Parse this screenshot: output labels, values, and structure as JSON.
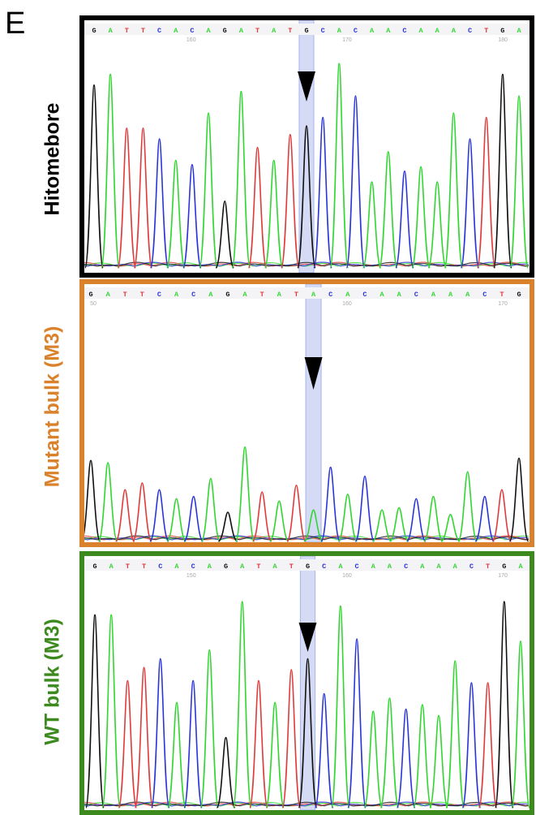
{
  "panel_letter": "E",
  "colors": {
    "A": "#2fd62f",
    "T": "#e03a3a",
    "C": "#2a35d8",
    "G": "#111111",
    "highlight": "#7c8fe0"
  },
  "panels": [
    {
      "id": "hitomebore",
      "label": "Hitomebore",
      "label_color": "#000000",
      "border_color": "#000000",
      "sequence": "GATTCACAGATATGCACAACAAACTGA",
      "positions": [
        "160",
        "170",
        "180"
      ],
      "highlight_base": "G",
      "peaks": [
        0.85,
        0.9,
        0.65,
        0.65,
        0.6,
        0.5,
        0.48,
        0.72,
        0.31,
        0.82,
        0.56,
        0.5,
        0.62,
        0.66,
        0.7,
        0.95,
        0.8,
        0.4,
        0.54,
        0.45,
        0.47,
        0.4,
        0.72,
        0.6,
        0.7,
        0.9,
        0.8
      ]
    },
    {
      "id": "mutant-bulk",
      "label": "Mutant bulk (M3)",
      "label_color": "#d9822b",
      "border_color": "#d9822b",
      "sequence": "GATTCACAGATATACACAACAAACTG",
      "positions": [
        "50",
        "160",
        "170"
      ],
      "highlight_base": "A",
      "peaks": [
        0.36,
        0.35,
        0.23,
        0.26,
        0.23,
        0.19,
        0.2,
        0.28,
        0.13,
        0.42,
        0.22,
        0.18,
        0.25,
        0.14,
        0.33,
        0.21,
        0.29,
        0.14,
        0.15,
        0.19,
        0.2,
        0.12,
        0.31,
        0.2,
        0.23,
        0.37
      ]
    },
    {
      "id": "wt-bulk",
      "label": "WT bulk (M3)",
      "label_color": "#3c8a1e",
      "border_color": "#3c8a1e",
      "sequence": "GATTCACAGATATGCACAACAAACTGA",
      "positions": [
        "150",
        "160",
        "170"
      ],
      "highlight_base": "G",
      "peaks": [
        0.88,
        0.88,
        0.58,
        0.64,
        0.68,
        0.48,
        0.58,
        0.72,
        0.32,
        0.94,
        0.58,
        0.48,
        0.63,
        0.68,
        0.52,
        0.92,
        0.77,
        0.44,
        0.5,
        0.45,
        0.47,
        0.42,
        0.67,
        0.57,
        0.57,
        0.94,
        0.76
      ]
    }
  ]
}
